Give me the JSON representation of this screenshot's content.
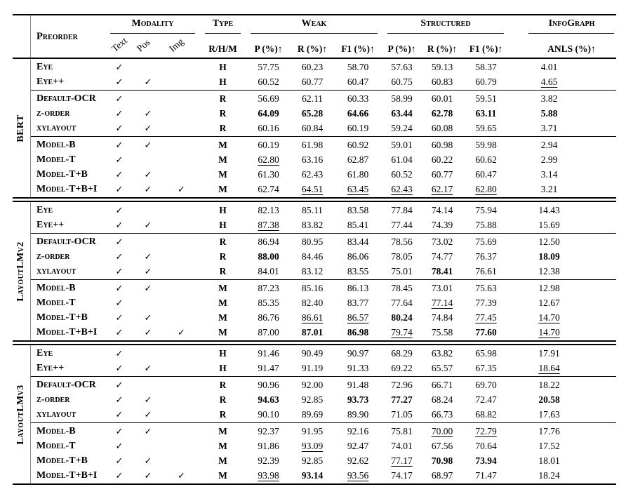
{
  "colors": {
    "rule": "#000000",
    "divider": "#8a8a8a",
    "text": "#000000",
    "background": "#ffffff"
  },
  "table": {
    "check_glyph": "✓",
    "headers": {
      "preorder": "Preorder",
      "modality": "Modality",
      "type": "Type",
      "weak": "Weak",
      "structured": "Structured",
      "infograph": "InfoGraph",
      "text_col": "Text",
      "pos_col": "Pos",
      "img_col": "Img",
      "type_sub": "R/H/M",
      "p_sub": "P (%)↑",
      "r_sub": "R (%)↑",
      "f1_sub": "F1 (%)↑",
      "anls_sub": "ANLS (%)↑"
    },
    "sections": [
      {
        "group": "BERT",
        "subgroups": [
          [
            {
              "preorder": "Eye",
              "modality": {
                "text": true,
                "pos": false,
                "img": false
              },
              "type": "H",
              "weak": [
                "57.75",
                "60.23",
                "58.70"
              ],
              "structured": [
                "57.63",
                "59.13",
                "58.37"
              ],
              "anls": "4.01"
            },
            {
              "preorder": "Eye++",
              "modality": {
                "text": true,
                "pos": true,
                "img": false
              },
              "type": "H",
              "weak": [
                "60.52",
                "60.77",
                "60.47"
              ],
              "structured": [
                "60.75",
                "60.83",
                "60.79"
              ],
              "anls": {
                "v": "4.65",
                "u": true
              }
            }
          ],
          [
            {
              "preorder": "Default-OCR",
              "modality": {
                "text": true,
                "pos": false,
                "img": false
              },
              "type": "R",
              "weak": [
                "56.69",
                "62.11",
                "60.33"
              ],
              "structured": [
                "58.99",
                "60.01",
                "59.51"
              ],
              "anls": "3.82"
            },
            {
              "preorder": "z-order",
              "modality": {
                "text": true,
                "pos": true,
                "img": false
              },
              "type": "R",
              "weak": [
                {
                  "v": "64.09",
                  "b": true
                },
                {
                  "v": "65.28",
                  "b": true
                },
                {
                  "v": "64.66",
                  "b": true
                }
              ],
              "structured": [
                {
                  "v": "63.44",
                  "b": true
                },
                {
                  "v": "62.78",
                  "b": true
                },
                {
                  "v": "63.11",
                  "b": true
                }
              ],
              "anls": {
                "v": "5.88",
                "b": true
              }
            },
            {
              "preorder": "xylayout",
              "modality": {
                "text": true,
                "pos": true,
                "img": false
              },
              "type": "R",
              "weak": [
                "60.16",
                "60.84",
                "60.19"
              ],
              "structured": [
                "59.24",
                "60.08",
                "59.65"
              ],
              "anls": "3.71"
            }
          ],
          [
            {
              "preorder": "Model-B",
              "modality": {
                "text": true,
                "pos": true,
                "img": false
              },
              "type": "M",
              "weak": [
                "60.19",
                "61.98",
                "60.92"
              ],
              "structured": [
                "59.01",
                "60.98",
                "59.98"
              ],
              "anls": "2.94"
            },
            {
              "preorder": "Model-T",
              "modality": {
                "text": true,
                "pos": false,
                "img": false
              },
              "type": "M",
              "weak": [
                {
                  "v": "62.80",
                  "u": true
                },
                "63.16",
                "62.87"
              ],
              "structured": [
                "61.04",
                "60.22",
                "60.62"
              ],
              "anls": "2.99"
            },
            {
              "preorder": "Model-T+B",
              "modality": {
                "text": true,
                "pos": true,
                "img": false
              },
              "type": "M",
              "weak": [
                "61.30",
                "62.43",
                "61.80"
              ],
              "structured": [
                "60.52",
                "60.77",
                "60.47"
              ],
              "anls": "3.14"
            },
            {
              "preorder": "Model-T+B+I",
              "modality": {
                "text": true,
                "pos": true,
                "img": true
              },
              "type": "M",
              "weak": [
                "62.74",
                {
                  "v": "64.51",
                  "u": true
                },
                {
                  "v": "63.45",
                  "u": true
                }
              ],
              "structured": [
                {
                  "v": "62.43",
                  "u": true
                },
                {
                  "v": "62.17",
                  "u": true
                },
                {
                  "v": "62.80",
                  "u": true
                }
              ],
              "anls": "3.21"
            }
          ]
        ]
      },
      {
        "group": "LayoutLMv2",
        "subgroups": [
          [
            {
              "preorder": "Eye",
              "modality": {
                "text": true,
                "pos": false,
                "img": false
              },
              "type": "H",
              "weak": [
                "82.13",
                "85.11",
                "83.58"
              ],
              "structured": [
                "77.84",
                "74.14",
                "75.94"
              ],
              "anls": "14.43"
            },
            {
              "preorder": "Eye++",
              "modality": {
                "text": true,
                "pos": true,
                "img": false
              },
              "type": "H",
              "weak": [
                {
                  "v": "87.38",
                  "u": true
                },
                "83.82",
                "85.41"
              ],
              "structured": [
                "77.44",
                "74.39",
                "75.88"
              ],
              "anls": "15.69"
            }
          ],
          [
            {
              "preorder": "Default-OCR",
              "modality": {
                "text": true,
                "pos": false,
                "img": false
              },
              "type": "R",
              "weak": [
                "86.94",
                "80.95",
                "83.44"
              ],
              "structured": [
                "78.56",
                "73.02",
                "75.69"
              ],
              "anls": "12.50"
            },
            {
              "preorder": "z-order",
              "modality": {
                "text": true,
                "pos": true,
                "img": false
              },
              "type": "R",
              "weak": [
                {
                  "v": "88.00",
                  "b": true
                },
                "84.46",
                "86.06"
              ],
              "structured": [
                "78.05",
                "74.77",
                "76.37"
              ],
              "anls": {
                "v": "18.09",
                "b": true
              }
            },
            {
              "preorder": "xylayout",
              "modality": {
                "text": true,
                "pos": true,
                "img": false
              },
              "type": "R",
              "weak": [
                "84.01",
                "83.12",
                "83.55"
              ],
              "structured": [
                "75.01",
                {
                  "v": "78.41",
                  "b": true
                },
                "76.61"
              ],
              "anls": "12.38"
            }
          ],
          [
            {
              "preorder": "Model-B",
              "modality": {
                "text": true,
                "pos": true,
                "img": false
              },
              "type": "M",
              "weak": [
                "87.23",
                "85.16",
                "86.13"
              ],
              "structured": [
                "78.45",
                "73.01",
                "75.63"
              ],
              "anls": "12.98"
            },
            {
              "preorder": "Model-T",
              "modality": {
                "text": true,
                "pos": false,
                "img": false
              },
              "type": "M",
              "weak": [
                "85.35",
                "82.40",
                "83.77"
              ],
              "structured": [
                "77.64",
                {
                  "v": "77.14",
                  "u": true
                },
                "77.39"
              ],
              "anls": "12.67"
            },
            {
              "preorder": "Model-T+B",
              "modality": {
                "text": true,
                "pos": true,
                "img": false
              },
              "type": "M",
              "weak": [
                "86.76",
                {
                  "v": "86.61",
                  "u": true
                },
                {
                  "v": "86.57",
                  "u": true
                }
              ],
              "structured": [
                {
                  "v": "80.24",
                  "b": true
                },
                "74.84",
                {
                  "v": "77.45",
                  "u": true
                }
              ],
              "anls": {
                "v": "14.70",
                "u": true
              }
            },
            {
              "preorder": "Model-T+B+I",
              "modality": {
                "text": true,
                "pos": true,
                "img": true
              },
              "type": "M",
              "weak": [
                "87.00",
                {
                  "v": "87.01",
                  "b": true
                },
                {
                  "v": "86.98",
                  "b": true
                }
              ],
              "structured": [
                {
                  "v": "79.74",
                  "u": true
                },
                "75.58",
                {
                  "v": "77.60",
                  "b": true
                }
              ],
              "anls": {
                "v": "14.70",
                "u": true
              }
            }
          ]
        ]
      },
      {
        "group": "LayoutLMv3",
        "subgroups": [
          [
            {
              "preorder": "Eye",
              "modality": {
                "text": true,
                "pos": false,
                "img": false
              },
              "type": "H",
              "weak": [
                "91.46",
                "90.49",
                "90.97"
              ],
              "structured": [
                "68.29",
                "63.82",
                "65.98"
              ],
              "anls": "17.91"
            },
            {
              "preorder": "Eye++",
              "modality": {
                "text": true,
                "pos": true,
                "img": false
              },
              "type": "H",
              "weak": [
                "91.47",
                "91.19",
                "91.33"
              ],
              "structured": [
                "69.22",
                "65.57",
                "67.35"
              ],
              "anls": {
                "v": "18.64",
                "u": true
              }
            }
          ],
          [
            {
              "preorder": "Default-OCR",
              "modality": {
                "text": true,
                "pos": false,
                "img": false
              },
              "type": "R",
              "weak": [
                "90.96",
                "92.00",
                "91.48"
              ],
              "structured": [
                "72.96",
                "66.71",
                "69.70"
              ],
              "anls": "18.22"
            },
            {
              "preorder": "z-order",
              "modality": {
                "text": true,
                "pos": true,
                "img": false
              },
              "type": "R",
              "weak": [
                {
                  "v": "94.63",
                  "b": true
                },
                "92.85",
                {
                  "v": "93.73",
                  "b": true
                }
              ],
              "structured": [
                {
                  "v": "77.27",
                  "b": true
                },
                "68.24",
                "72.47"
              ],
              "anls": {
                "v": "20.58",
                "b": true
              }
            },
            {
              "preorder": "xylayout",
              "modality": {
                "text": true,
                "pos": true,
                "img": false
              },
              "type": "R",
              "weak": [
                "90.10",
                "89.69",
                "89.90"
              ],
              "structured": [
                "71.05",
                "66.73",
                "68.82"
              ],
              "anls": "17.63"
            }
          ],
          [
            {
              "preorder": "Model-B",
              "modality": {
                "text": true,
                "pos": true,
                "img": false
              },
              "type": "M",
              "weak": [
                "92.37",
                "91.95",
                "92.16"
              ],
              "structured": [
                "75.81",
                {
                  "v": "70.00",
                  "u": true
                },
                {
                  "v": "72.79",
                  "u": true
                }
              ],
              "anls": "17.76"
            },
            {
              "preorder": "Model-T",
              "modality": {
                "text": true,
                "pos": false,
                "img": false
              },
              "type": "M",
              "weak": [
                "91.86",
                {
                  "v": "93.09",
                  "u": true
                },
                "92.47"
              ],
              "structured": [
                "74.01",
                "67.56",
                "70.64"
              ],
              "anls": "17.52"
            },
            {
              "preorder": "Model-T+B",
              "modality": {
                "text": true,
                "pos": true,
                "img": false
              },
              "type": "M",
              "weak": [
                "92.39",
                "92.85",
                "92.62"
              ],
              "structured": [
                {
                  "v": "77.17",
                  "u": true
                },
                {
                  "v": "70.98",
                  "b": true
                },
                {
                  "v": "73.94",
                  "b": true
                }
              ],
              "anls": "18.01"
            },
            {
              "preorder": "Model-T+B+I",
              "modality": {
                "text": true,
                "pos": true,
                "img": true
              },
              "type": "M",
              "weak": [
                {
                  "v": "93.98",
                  "u": true
                },
                {
                  "v": "93.14",
                  "b": true
                },
                {
                  "v": "93.56",
                  "u": true
                }
              ],
              "structured": [
                "74.17",
                "68.97",
                "71.47"
              ],
              "anls": "18.24"
            }
          ]
        ]
      }
    ]
  }
}
